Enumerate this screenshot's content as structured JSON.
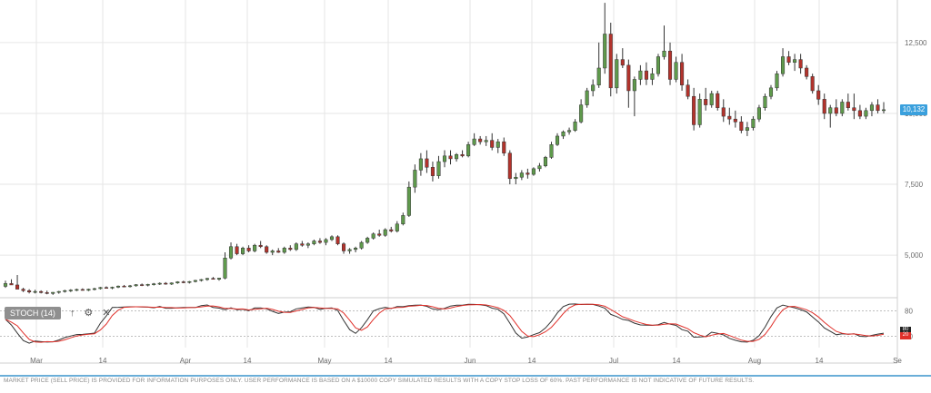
{
  "chart_data": {
    "type": "candlestick",
    "y_axis": {
      "ticks": [
        "12,500",
        "10,000",
        "7,500",
        "5,000"
      ],
      "tick_values": [
        12500,
        10000,
        7500,
        5000
      ],
      "range": [
        3500,
        14000
      ]
    },
    "x_axis": {
      "labels": [
        "Mar",
        "14",
        "Apr",
        "14",
        "May",
        "14",
        "Jun",
        "14",
        "Jul",
        "14",
        "Aug",
        "14",
        "Se"
      ]
    },
    "last_price": "10,132",
    "indicator": {
      "name": "STOCH (14)",
      "levels": [
        "80",
        "20"
      ],
      "range": [
        0,
        100
      ]
    },
    "candles": [
      [
        3900,
        4100,
        3850,
        4000
      ],
      [
        4000,
        4150,
        3950,
        3950
      ],
      [
        3950,
        4300,
        3900,
        3800
      ],
      [
        3800,
        3850,
        3700,
        3750
      ],
      [
        3750,
        3800,
        3650,
        3700
      ],
      [
        3700,
        3780,
        3650,
        3720
      ],
      [
        3720,
        3760,
        3650,
        3680
      ],
      [
        3680,
        3750,
        3620,
        3650
      ],
      [
        3650,
        3700,
        3600,
        3690
      ],
      [
        3690,
        3740,
        3640,
        3720
      ],
      [
        3720,
        3780,
        3680,
        3750
      ],
      [
        3750,
        3800,
        3700,
        3770
      ],
      [
        3770,
        3820,
        3730,
        3790
      ],
      [
        3790,
        3830,
        3750,
        3760
      ],
      [
        3760,
        3820,
        3730,
        3800
      ],
      [
        3800,
        3850,
        3760,
        3820
      ],
      [
        3820,
        3880,
        3790,
        3860
      ],
      [
        3860,
        3900,
        3820,
        3840
      ],
      [
        3840,
        3890,
        3800,
        3870
      ],
      [
        3870,
        3930,
        3840,
        3910
      ],
      [
        3910,
        3950,
        3870,
        3890
      ],
      [
        3890,
        3950,
        3860,
        3920
      ],
      [
        3920,
        3980,
        3890,
        3960
      ],
      [
        3960,
        4000,
        3910,
        3940
      ],
      [
        3940,
        3990,
        3900,
        3970
      ],
      [
        3970,
        4020,
        3930,
        3990
      ],
      [
        3990,
        4040,
        3950,
        4010
      ],
      [
        4010,
        4050,
        3960,
        3980
      ],
      [
        3980,
        4040,
        3950,
        4020
      ],
      [
        4020,
        4080,
        3990,
        4060
      ],
      [
        4060,
        4100,
        4010,
        4040
      ],
      [
        4040,
        4090,
        4000,
        4070
      ],
      [
        4070,
        4130,
        4040,
        4110
      ],
      [
        4110,
        4160,
        4070,
        4140
      ],
      [
        4140,
        4200,
        4100,
        4180
      ],
      [
        4180,
        4230,
        4140,
        4150
      ],
      [
        4150,
        4200,
        4100,
        4190
      ],
      [
        4190,
        5100,
        4150,
        4900
      ],
      [
        4900,
        5450,
        4850,
        5300
      ],
      [
        5300,
        5400,
        5000,
        5050
      ],
      [
        5050,
        5300,
        5000,
        5250
      ],
      [
        5250,
        5350,
        5100,
        5150
      ],
      [
        5150,
        5400,
        5100,
        5350
      ],
      [
        5350,
        5500,
        5250,
        5300
      ],
      [
        5300,
        5350,
        5050,
        5100
      ],
      [
        5100,
        5200,
        5000,
        5150
      ],
      [
        5150,
        5250,
        5080,
        5100
      ],
      [
        5100,
        5300,
        5050,
        5250
      ],
      [
        5250,
        5350,
        5150,
        5200
      ],
      [
        5200,
        5450,
        5150,
        5400
      ],
      [
        5400,
        5500,
        5300,
        5350
      ],
      [
        5350,
        5450,
        5250,
        5400
      ],
      [
        5400,
        5550,
        5350,
        5500
      ],
      [
        5500,
        5600,
        5400,
        5450
      ],
      [
        5450,
        5600,
        5350,
        5550
      ],
      [
        5550,
        5700,
        5500,
        5650
      ],
      [
        5650,
        5700,
        5350,
        5400
      ],
      [
        5400,
        5450,
        5050,
        5150
      ],
      [
        5150,
        5250,
        5050,
        5200
      ],
      [
        5200,
        5300,
        5100,
        5250
      ],
      [
        5250,
        5500,
        5200,
        5450
      ],
      [
        5450,
        5650,
        5400,
        5600
      ],
      [
        5600,
        5800,
        5550,
        5750
      ],
      [
        5750,
        5900,
        5650,
        5700
      ],
      [
        5700,
        5950,
        5650,
        5900
      ],
      [
        5900,
        6000,
        5800,
        5850
      ],
      [
        5850,
        6200,
        5800,
        6100
      ],
      [
        6100,
        6500,
        6050,
        6400
      ],
      [
        6400,
        7600,
        6350,
        7400
      ],
      [
        7400,
        8200,
        7200,
        8000
      ],
      [
        8000,
        8600,
        7800,
        8400
      ],
      [
        8400,
        8700,
        7900,
        8100
      ],
      [
        8100,
        8300,
        7600,
        7800
      ],
      [
        7800,
        8500,
        7700,
        8300
      ],
      [
        8300,
        8700,
        8100,
        8500
      ],
      [
        8500,
        8700,
        8200,
        8400
      ],
      [
        8400,
        8600,
        8300,
        8550
      ],
      [
        8550,
        8700,
        8450,
        8500
      ],
      [
        8500,
        9000,
        8450,
        8900
      ],
      [
        8900,
        9300,
        8850,
        9100
      ],
      [
        9100,
        9200,
        8900,
        9000
      ],
      [
        9000,
        9200,
        8850,
        9050
      ],
      [
        9050,
        9300,
        8700,
        8800
      ],
      [
        8800,
        9100,
        8600,
        9000
      ],
      [
        9000,
        9150,
        8500,
        8600
      ],
      [
        8600,
        8700,
        7500,
        7700
      ],
      [
        7700,
        7900,
        7500,
        7750
      ],
      [
        7750,
        8000,
        7650,
        7900
      ],
      [
        7900,
        8050,
        7700,
        7850
      ],
      [
        7850,
        8100,
        7800,
        8050
      ],
      [
        8050,
        8250,
        7950,
        8150
      ],
      [
        8150,
        8500,
        8100,
        8450
      ],
      [
        8450,
        9000,
        8400,
        8900
      ],
      [
        8900,
        9300,
        8850,
        9200
      ],
      [
        9200,
        9400,
        9100,
        9350
      ],
      [
        9350,
        9500,
        9250,
        9400
      ],
      [
        9400,
        9800,
        9350,
        9700
      ],
      [
        9700,
        10500,
        9650,
        10300
      ],
      [
        10300,
        10900,
        10200,
        10800
      ],
      [
        10800,
        11200,
        10600,
        11000
      ],
      [
        11000,
        12500,
        10900,
        11600
      ],
      [
        11600,
        13900,
        11400,
        12800
      ],
      [
        12800,
        13200,
        10600,
        10900
      ],
      [
        10900,
        12100,
        10700,
        11900
      ],
      [
        11900,
        12300,
        11600,
        11700
      ],
      [
        11700,
        11900,
        10200,
        10800
      ],
      [
        10800,
        11300,
        9900,
        11200
      ],
      [
        11200,
        11700,
        11000,
        11500
      ],
      [
        11500,
        11800,
        11000,
        11200
      ],
      [
        11200,
        11600,
        11000,
        11400
      ],
      [
        11400,
        12100,
        11300,
        12000
      ],
      [
        12000,
        13100,
        11900,
        12200
      ],
      [
        12200,
        12500,
        11000,
        11200
      ],
      [
        11200,
        12000,
        11100,
        11800
      ],
      [
        11800,
        12100,
        10800,
        11000
      ],
      [
        11000,
        11200,
        10500,
        10600
      ],
      [
        10600,
        10900,
        9400,
        9600
      ],
      [
        9600,
        10700,
        9500,
        10500
      ],
      [
        10500,
        10900,
        10100,
        10300
      ],
      [
        10300,
        10800,
        10200,
        10700
      ],
      [
        10700,
        10800,
        10100,
        10200
      ],
      [
        10200,
        10500,
        9700,
        9900
      ],
      [
        9900,
        10200,
        9600,
        9800
      ],
      [
        9800,
        10100,
        9500,
        9700
      ],
      [
        9700,
        9900,
        9300,
        9400
      ],
      [
        9400,
        9700,
        9200,
        9500
      ],
      [
        9500,
        9900,
        9400,
        9800
      ],
      [
        9800,
        10300,
        9700,
        10200
      ],
      [
        10200,
        10700,
        10100,
        10600
      ],
      [
        10600,
        11000,
        10500,
        10900
      ],
      [
        10900,
        11500,
        10800,
        11400
      ],
      [
        11400,
        12300,
        11300,
        12000
      ],
      [
        12000,
        12200,
        11700,
        11800
      ],
      [
        11800,
        12100,
        11500,
        11900
      ],
      [
        11900,
        12100,
        11400,
        11600
      ],
      [
        11600,
        11700,
        11200,
        11300
      ],
      [
        11300,
        11400,
        10700,
        10800
      ],
      [
        10800,
        11000,
        10300,
        10500
      ],
      [
        10500,
        10700,
        9800,
        10000
      ],
      [
        10000,
        10300,
        9500,
        10200
      ],
      [
        10200,
        10500,
        9900,
        10000
      ],
      [
        10000,
        10500,
        9900,
        10400
      ],
      [
        10400,
        10700,
        10100,
        10200
      ],
      [
        10200,
        10700,
        9800,
        10100
      ],
      [
        10100,
        10300,
        9800,
        9900
      ],
      [
        9900,
        10200,
        9800,
        10100
      ],
      [
        10100,
        10400,
        9900,
        10300
      ],
      [
        10300,
        10500,
        10000,
        10100
      ],
      [
        10100,
        10400,
        10000,
        10130
      ]
    ]
  },
  "stoch_label": "STOCH (14)",
  "stoch_tag_top": "80",
  "stoch_tag_bottom": "20",
  "disclaimer": "MARKET PRICE (SELL PRICE) IS PROVIDED FOR INFORMATION PURPOSES ONLY. USER PERFORMANCE IS BASED ON A $10000 COPY SIMULATED RESULTS WITH A COPY STOP LOSS OF 60%. PAST PERFORMANCE IS NOT INDICATIVE OF FUTURE RESULTS.",
  "icons": {
    "up": "arrow-up-icon",
    "settings": "gear-icon",
    "close": "close-icon"
  },
  "colors": {
    "up": "#5f9a4c",
    "down": "#b3332c",
    "grid": "#e6e6e6",
    "stoch_fast": "#333333",
    "stoch_slow": "#e0302a",
    "price_tag": "#3aa0dd"
  }
}
